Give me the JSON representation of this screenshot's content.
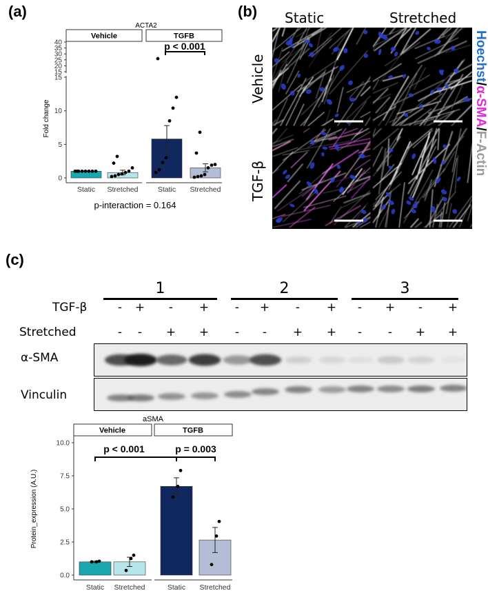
{
  "panels": {
    "a": {
      "label": "(a)",
      "chart_data": {
        "type": "bar",
        "title": "ACTA2",
        "ylabel": "Fold change",
        "facets": [
          "Vehicle",
          "TGFB"
        ],
        "categories": [
          "Static",
          "Stretched"
        ],
        "series": [
          {
            "facet": "Vehicle",
            "values": [
              1.0,
              0.8
            ],
            "errors": [
              0.05,
              0.35
            ],
            "points": [
              [
                1.0,
                1.0,
                1.0,
                1.0,
                1.0,
                1.0,
                1.0,
                1.0
              ],
              [
                0.2,
                0.3,
                0.5,
                0.6,
                0.8,
                1.0,
                1.5,
                2.2,
                3.2
              ]
            ]
          },
          {
            "facet": "TGFB",
            "values": [
              5.8,
              1.5
            ],
            "errors": [
              2.0,
              0.6
            ],
            "points": [
              [
                0.8,
                1.2,
                2.3,
                3.0,
                8.5,
                10.4,
                12.0,
                26
              ],
              [
                0.1,
                0.2,
                0.3,
                0.5,
                1.5,
                1.9,
                2.0,
                3.7,
                6.8
              ]
            ]
          }
        ],
        "lower_ticks": [
          0,
          5,
          10,
          15
        ],
        "upper_ticks": [
          15,
          20,
          25,
          30,
          35,
          40
        ],
        "ylim": [
          0,
          40
        ],
        "axis_break": 15,
        "annotation": "p < 0.001",
        "footer": "p-interaction = 0.164",
        "colors": [
          "#1aa7b0",
          "#b6e6ec",
          "#10285e",
          "#b3bdd6"
        ]
      }
    },
    "b": {
      "label": "(b)",
      "col_labels": [
        "Static",
        "Stretched"
      ],
      "row_labels": [
        "Vehicle",
        "TGF-β"
      ],
      "stain": {
        "hoechst": "Hoechst",
        "asma": "α-SMA",
        "factin": "F-Actin",
        "sep": "/"
      },
      "colors": {
        "hoechst": "#1f6fd1",
        "asma": "#e02ad6",
        "factin": "#9b9b9b"
      }
    },
    "c": {
      "label": "(c)",
      "groups": [
        "1",
        "2",
        "3"
      ],
      "row_tgfb": "TGF-β",
      "row_stretched": "Stretched",
      "tgfb_signs": [
        "-",
        "+",
        "-",
        "+",
        "-",
        "+",
        "-",
        "+",
        "-",
        "+",
        "-",
        "+"
      ],
      "stretched_signs": [
        "-",
        "-",
        "+",
        "+",
        "-",
        "-",
        "+",
        "+",
        "-",
        "-",
        "+",
        "+"
      ],
      "band_labels": [
        "α-SMA",
        "Vinculin"
      ],
      "band_intensity_asma": [
        0.85,
        1.0,
        0.75,
        0.9,
        0.55,
        0.85,
        0.25,
        0.2,
        0.12,
        0.3,
        0.22,
        0.08
      ],
      "band_intensity_vinculin": [
        0.7,
        0.72,
        0.62,
        0.6,
        0.65,
        0.68,
        0.7,
        0.55,
        0.7,
        0.65,
        0.72,
        0.7
      ],
      "chart_data": {
        "type": "bar",
        "title": "aSMA",
        "ylabel": "Protein_expression (A.U.)",
        "facets": [
          "Vehicle",
          "TGFB"
        ],
        "categories": [
          "Static",
          "Stretched"
        ],
        "series": [
          {
            "facet": "Vehicle",
            "values": [
              1.0,
              1.0
            ],
            "errors": [
              0.05,
              0.35
            ],
            "points": [
              [
                1.0,
                1.0,
                1.05
              ],
              [
                0.35,
                1.25,
                1.5
              ]
            ]
          },
          {
            "facet": "TGFB",
            "values": [
              6.7,
              2.65
            ],
            "errors": [
              0.65,
              0.95
            ],
            "points": [
              [
                5.9,
                6.7,
                7.9
              ],
              [
                0.8,
                2.95,
                4.05
              ]
            ]
          }
        ],
        "ticks": [
          "0.0",
          "2.5",
          "5.0",
          "7.5",
          "10.0"
        ],
        "ylim": [
          0,
          10
        ],
        "annotations": [
          "p < 0.001",
          "p = 0.003"
        ],
        "colors": [
          "#1aa7b0",
          "#b6e6ec",
          "#10285e",
          "#b3bdd6"
        ]
      }
    }
  }
}
